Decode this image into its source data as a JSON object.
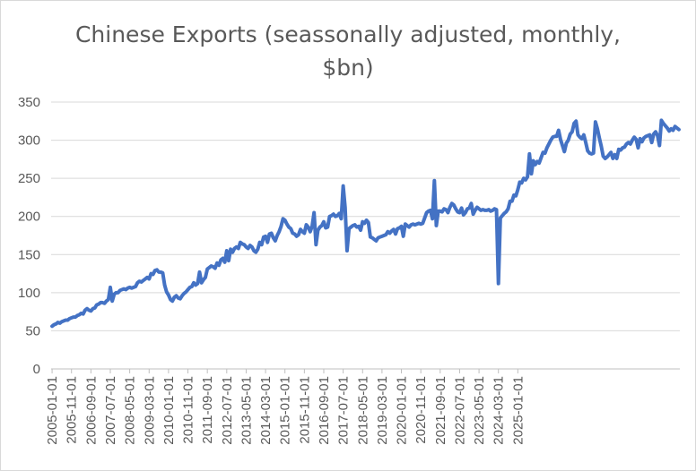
{
  "chart_data": {
    "type": "line",
    "title_line1": "Chinese Exports (seassonally adjusted, monthly,",
    "title_line2": "$bn)",
    "xlabel": "",
    "ylabel": "",
    "ylim": [
      0,
      350
    ],
    "yticks": [
      0,
      50,
      100,
      150,
      200,
      250,
      300,
      350
    ],
    "grid": true,
    "legend": "none",
    "line_color": "#4472C4",
    "xtick_labels": [
      "2005-01-01",
      "2005-11-01",
      "2006-09-01",
      "2007-07-01",
      "2008-05-01",
      "2009-03-01",
      "2010-01-01",
      "2010-11-01",
      "2011-09-01",
      "2012-07-01",
      "2013-05-01",
      "2014-03-01",
      "2015-01-01",
      "2015-11-01",
      "2016-09-01",
      "2017-07-01",
      "2018-05-01",
      "2019-03-01",
      "2020-01-01",
      "2020-11-01",
      "2021-09-01",
      "2022-07-01",
      "2023-05-01",
      "2024-03-01",
      "2025-01-01"
    ],
    "x_start": "2005-01",
    "series": [
      {
        "values": [
          56,
          58,
          59,
          61,
          60,
          62,
          63,
          64,
          64,
          66,
          67,
          68,
          68,
          70,
          71,
          73,
          72,
          77,
          79,
          77,
          76,
          79,
          80,
          84,
          85,
          87,
          87,
          86,
          89,
          91,
          107,
          89,
          98,
          100,
          100,
          103,
          104,
          105,
          104,
          106,
          107,
          106,
          107,
          108,
          113,
          115,
          114,
          116,
          118,
          120,
          118,
          125,
          124,
          129,
          130,
          127,
          127,
          126,
          110,
          101,
          97,
          91,
          89,
          94,
          96,
          93,
          92,
          96,
          99,
          101,
          104,
          107,
          108,
          113,
          110,
          112,
          127,
          113,
          117,
          120,
          131,
          133,
          135,
          134,
          132,
          139,
          136,
          143,
          145,
          140,
          155,
          142,
          157,
          153,
          158,
          160,
          158,
          166,
          164,
          163,
          160,
          158,
          162,
          160,
          155,
          153,
          157,
          166,
          163,
          173,
          174,
          166,
          177,
          178,
          172,
          168,
          175,
          180,
          187,
          197,
          195,
          190,
          186,
          184,
          178,
          177,
          174,
          176,
          183,
          180,
          178,
          189,
          186,
          180,
          187,
          205,
          163,
          182,
          186,
          188,
          193,
          185,
          186,
          200,
          201,
          203,
          200,
          201,
          204,
          197,
          240,
          212,
          155,
          184,
          186,
          188,
          189,
          186,
          187,
          182,
          193,
          191,
          195,
          192,
          173,
          172,
          170,
          168,
          172,
          173,
          174,
          175,
          176,
          180,
          178,
          181,
          183,
          177,
          184,
          185,
          187,
          174,
          190,
          188,
          186,
          189,
          190,
          189,
          190,
          191,
          190,
          191,
          198,
          205,
          207,
          208,
          197,
          247,
          188,
          207,
          207,
          206,
          210,
          209,
          205,
          212,
          217,
          215,
          210,
          206,
          205,
          211,
          202,
          205,
          210,
          211,
          217,
          203,
          208,
          212,
          210,
          208,
          209,
          208,
          208,
          209,
          207,
          208,
          210,
          209,
          112,
          198,
          201,
          204,
          206,
          210,
          220,
          220,
          228,
          227,
          235,
          245,
          244,
          250,
          248,
          252,
          282,
          256,
          273,
          268,
          272,
          270,
          277,
          284,
          283,
          290,
          295,
          300,
          304,
          305,
          305,
          313,
          301,
          293,
          285,
          296,
          300,
          308,
          311,
          322,
          325,
          307,
          304,
          302,
          307,
          297,
          286,
          283,
          282,
          283,
          324,
          315,
          303,
          292,
          279,
          276,
          278,
          281,
          284,
          276,
          281,
          276,
          288,
          287,
          290,
          291,
          295,
          297,
          295,
          300,
          304,
          301,
          290,
          302,
          298,
          303,
          305,
          306,
          307,
          297,
          308,
          311,
          306,
          293,
          326,
          322,
          319,
          316,
          312,
          315,
          313,
          318,
          316,
          314
        ]
      }
    ]
  }
}
